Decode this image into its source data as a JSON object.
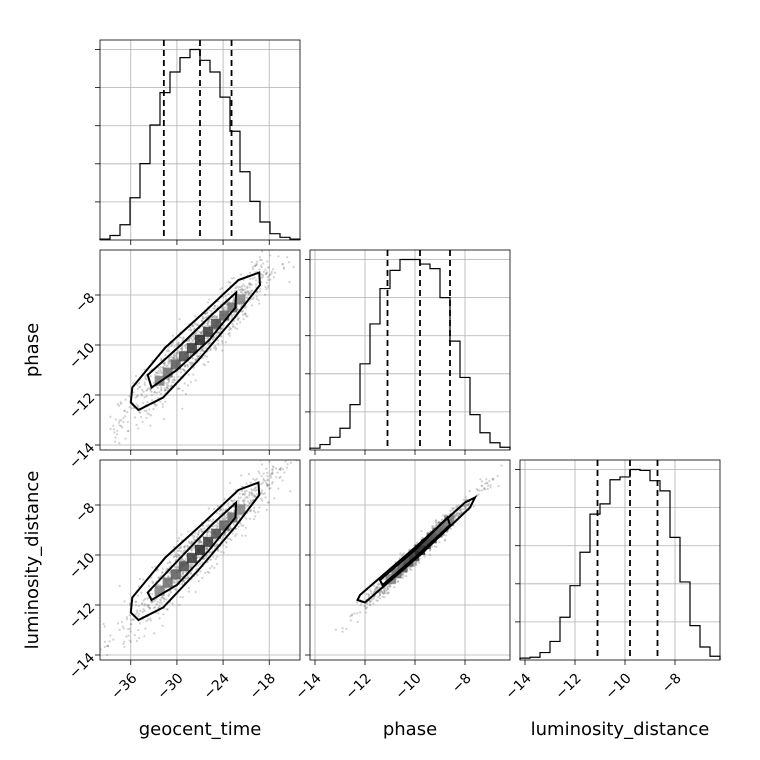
{
  "chart_data": {
    "type": "corner",
    "parameters": [
      "geocent_time",
      "phase",
      "luminosity_distance"
    ],
    "axes": {
      "geocent_time": {
        "range": [
          -40,
          -14
        ],
        "ticks": [
          -36,
          -30,
          -24,
          -18
        ],
        "tick_labels": [
          "−36",
          "−30",
          "−24",
          "−18"
        ]
      },
      "phase": {
        "range": [
          -14.2,
          -6.2
        ],
        "ticks": [
          -14,
          -12,
          -10,
          -8
        ],
        "tick_labels": [
          "−14",
          "−12",
          "−10",
          "−8"
        ]
      },
      "luminosity_distance": {
        "range": [
          -14.2,
          -6.2
        ],
        "ticks": [
          -14,
          -12,
          -10,
          -8
        ],
        "tick_labels": [
          "−14",
          "−12",
          "−10",
          "−8"
        ]
      }
    },
    "histograms": [
      {
        "parameter": "geocent_time",
        "bin_edges": [
          -40,
          -38.7,
          -37.4,
          -36.1,
          -34.8,
          -33.5,
          -32.2,
          -30.9,
          -29.6,
          -28.3,
          -27,
          -25.7,
          -24.4,
          -23.1,
          -21.8,
          -20.5,
          -19.2,
          -17.9,
          -16.6,
          -15.3,
          -14
        ],
        "counts": [
          1,
          5,
          17,
          47,
          85,
          128,
          164,
          187,
          203,
          212,
          200,
          187,
          159,
          121,
          76,
          43,
          20,
          7,
          3,
          1
        ],
        "quantiles": [
          -31.7,
          -27.0,
          -22.9
        ]
      },
      {
        "parameter": "phase",
        "bin_edges": [
          -14.2,
          -13.8,
          -13.4,
          -13.0,
          -12.6,
          -12.2,
          -11.8,
          -11.4,
          -11.0,
          -10.6,
          -10.2,
          -9.8,
          -9.4,
          -9.0,
          -8.6,
          -8.2,
          -7.8,
          -7.4,
          -7.0,
          -6.6,
          -6.2
        ],
        "counts": [
          2,
          6,
          14,
          24,
          50,
          95,
          139,
          178,
          198,
          210,
          210,
          205,
          200,
          168,
          120,
          80,
          39,
          19,
          8,
          3
        ],
        "quantiles": [
          -11.1,
          -9.8,
          -8.6
        ]
      },
      {
        "parameter": "luminosity_distance",
        "bin_edges": [
          -14.2,
          -13.8,
          -13.4,
          -13.0,
          -12.6,
          -12.2,
          -11.8,
          -11.4,
          -11.0,
          -10.6,
          -10.2,
          -9.8,
          -9.4,
          -9.0,
          -8.6,
          -8.2,
          -7.8,
          -7.4,
          -7.0,
          -6.6,
          -6.2
        ],
        "counts": [
          2,
          3,
          8,
          20,
          46,
          80,
          116,
          157,
          168,
          194,
          197,
          205,
          204,
          193,
          182,
          132,
          84,
          37,
          14,
          4
        ],
        "quantiles": [
          -11.1,
          -9.8,
          -8.7
        ]
      }
    ],
    "pairs": [
      {
        "x": "geocent_time",
        "y": "phase",
        "center": [
          -27.0,
          -9.8
        ],
        "slope": 0.31,
        "spread_along": 5.0,
        "spread_across": 0.42,
        "contours": [
          [
            [
              -36.0,
              -12.3
            ],
            [
              -35.8,
              -11.7
            ],
            [
              -31.5,
              -10.1
            ],
            [
              -26.5,
              -8.7
            ],
            [
              -22.0,
              -7.4
            ],
            [
              -19.3,
              -7.1
            ],
            [
              -19.2,
              -7.6
            ],
            [
              -22.5,
              -8.9
            ],
            [
              -27.2,
              -10.6
            ],
            [
              -31.8,
              -12.1
            ],
            [
              -35.0,
              -12.6
            ]
          ],
          [
            [
              -33.8,
              -11.2
            ],
            [
              -29.5,
              -10.0
            ],
            [
              -25.5,
              -8.8
            ],
            [
              -22.3,
              -7.9
            ],
            [
              -22.4,
              -8.5
            ],
            [
              -25.8,
              -9.8
            ],
            [
              -30.0,
              -11.0
            ],
            [
              -33.3,
              -11.7
            ]
          ]
        ]
      },
      {
        "x": "geocent_time",
        "y": "luminosity_distance",
        "center": [
          -27.0,
          -9.8
        ],
        "slope": 0.31,
        "spread_along": 5.0,
        "spread_across": 0.42,
        "contours": [
          [
            [
              -36.0,
              -12.3
            ],
            [
              -35.8,
              -11.7
            ],
            [
              -31.5,
              -10.1
            ],
            [
              -26.5,
              -8.7
            ],
            [
              -22.0,
              -7.4
            ],
            [
              -19.4,
              -7.1
            ],
            [
              -19.3,
              -7.6
            ],
            [
              -22.5,
              -8.9
            ],
            [
              -27.2,
              -10.6
            ],
            [
              -31.8,
              -12.1
            ],
            [
              -35.0,
              -12.6
            ]
          ],
          [
            [
              -33.8,
              -11.5
            ],
            [
              -29.5,
              -10.1
            ],
            [
              -25.5,
              -8.8
            ],
            [
              -22.3,
              -7.9
            ],
            [
              -22.4,
              -8.5
            ],
            [
              -25.8,
              -9.8
            ],
            [
              -30.0,
              -11.2
            ],
            [
              -33.3,
              -11.8
            ]
          ]
        ]
      },
      {
        "x": "phase",
        "y": "luminosity_distance",
        "center": [
          -9.8,
          -9.8
        ],
        "slope": 1.0,
        "spread_along": 1.5,
        "spread_across": 0.12,
        "contours": [
          [
            [
              -12.3,
              -11.8
            ],
            [
              -12.2,
              -11.6
            ],
            [
              -10.0,
              -9.7
            ],
            [
              -8.0,
              -7.9
            ],
            [
              -7.6,
              -7.7
            ],
            [
              -7.8,
              -8.1
            ],
            [
              -9.8,
              -10.0
            ],
            [
              -12.0,
              -11.9
            ]
          ],
          [
            [
              -11.4,
              -11.0
            ],
            [
              -10.0,
              -9.8
            ],
            [
              -8.7,
              -8.5
            ],
            [
              -8.6,
              -8.8
            ],
            [
              -10.0,
              -10.1
            ],
            [
              -11.3,
              -11.2
            ]
          ]
        ]
      }
    ],
    "grid": true
  }
}
